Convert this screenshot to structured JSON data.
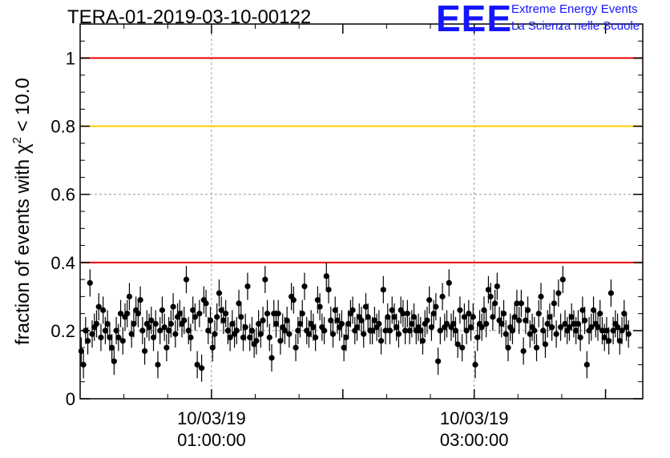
{
  "header": {
    "title": "TERA-01-2019-03-10-00122"
  },
  "logo": {
    "mark": "EEE",
    "line1": "Extreme Energy Events",
    "line2": "La Scienza nelle Scuole",
    "color": "#1515ff"
  },
  "chart_data": {
    "type": "scatter",
    "title": "TERA-01-2019-03-10-00122",
    "ylabel": "fraction of events with χ² < 10.0",
    "xlabel": "",
    "ylim": [
      0,
      1.1
    ],
    "yticks": [
      0,
      0.2,
      0.4,
      0.6,
      0.8,
      1
    ],
    "ytick_labels": [
      "0",
      "0.2",
      "0.4",
      "0.6",
      "0.8",
      "1"
    ],
    "x_axis_type": "time",
    "xlim": [
      "2019-03-10 00:00:00",
      "2019-03-10 04:17:00"
    ],
    "xticks": [
      "2019-03-10 01:00:00",
      "2019-03-10 03:00:00"
    ],
    "xtick_labels": [
      [
        "10/03/19",
        "01:00:00"
      ],
      [
        "10/03/19",
        "03:00:00"
      ]
    ],
    "grid": true,
    "reference_lines": [
      {
        "y": 1.0,
        "color": "#ee0000"
      },
      {
        "y": 0.8,
        "color": "#ffcc00"
      },
      {
        "y": 0.4,
        "color": "#ee0000"
      }
    ],
    "series": [
      {
        "marker_color": "#000000",
        "error": 0.04,
        "x_start": "2019-03-10 00:00:00",
        "x_step_seconds": 60,
        "values": [
          0.14,
          0.1,
          0.2,
          0.17,
          0.34,
          0.19,
          0.21,
          0.22,
          0.27,
          0.18,
          0.26,
          0.2,
          0.22,
          0.18,
          0.15,
          0.11,
          0.2,
          0.18,
          0.25,
          0.17,
          0.24,
          0.25,
          0.3,
          0.19,
          0.22,
          0.26,
          0.25,
          0.29,
          0.2,
          0.14,
          0.22,
          0.21,
          0.23,
          0.18,
          0.22,
          0.1,
          0.2,
          0.26,
          0.21,
          0.15,
          0.2,
          0.22,
          0.27,
          0.19,
          0.24,
          0.25,
          0.22,
          0.23,
          0.35,
          0.2,
          0.18,
          0.26,
          0.24,
          0.1,
          0.25,
          0.09,
          0.29,
          0.28,
          0.2,
          0.23,
          0.15,
          0.19,
          0.24,
          0.31,
          0.26,
          0.23,
          0.25,
          0.2,
          0.18,
          0.22,
          0.19,
          0.2,
          0.28,
          0.24,
          0.18,
          0.21,
          0.33,
          0.18,
          0.2,
          0.16,
          0.17,
          0.22,
          0.19,
          0.23,
          0.35,
          0.25,
          0.18,
          0.12,
          0.25,
          0.22,
          0.25,
          0.17,
          0.21,
          0.2,
          0.23,
          0.19,
          0.3,
          0.29,
          0.15,
          0.2,
          0.22,
          0.25,
          0.33,
          0.2,
          0.19,
          0.22,
          0.21,
          0.18,
          0.29,
          0.27,
          0.21,
          0.2,
          0.36,
          0.32,
          0.23,
          0.19,
          0.26,
          0.23,
          0.21,
          0.22,
          0.15,
          0.18,
          0.22,
          0.25,
          0.26,
          0.2,
          0.21,
          0.24,
          0.23,
          0.19,
          0.27,
          0.24,
          0.2,
          0.2,
          0.23,
          0.21,
          0.22,
          0.17,
          0.32,
          0.2,
          0.24,
          0.2,
          0.26,
          0.24,
          0.21,
          0.19,
          0.26,
          0.25,
          0.2,
          0.25,
          0.2,
          0.22,
          0.24,
          0.2,
          0.21,
          0.2,
          0.17,
          0.22,
          0.23,
          0.29,
          0.21,
          0.25,
          0.27,
          0.11,
          0.2,
          0.3,
          0.21,
          0.22,
          0.34,
          0.21,
          0.22,
          0.2,
          0.16,
          0.26,
          0.15,
          0.24,
          0.2,
          0.25,
          0.21,
          0.24,
          0.1,
          0.18,
          0.22,
          0.21,
          0.26,
          0.22,
          0.32,
          0.3,
          0.24,
          0.28,
          0.33,
          0.23,
          0.22,
          0.25,
          0.19,
          0.15,
          0.21,
          0.2,
          0.24,
          0.28,
          0.23,
          0.28,
          0.14,
          0.23,
          0.26,
          0.19,
          0.21,
          0.2,
          0.15,
          0.25,
          0.3,
          0.2,
          0.16,
          0.22,
          0.24,
          0.21,
          0.28,
          0.19,
          0.31,
          0.21,
          0.35,
          0.22,
          0.2,
          0.21,
          0.24,
          0.22,
          0.2,
          0.22,
          0.18,
          0.26,
          0.23,
          0.1,
          0.2,
          0.21,
          0.26,
          0.22,
          0.21,
          0.25,
          0.2,
          0.18,
          0.2,
          0.17,
          0.31,
          0.2,
          0.22,
          0.21,
          0.17,
          0.2,
          0.25,
          0.21,
          0.19
        ]
      }
    ]
  }
}
